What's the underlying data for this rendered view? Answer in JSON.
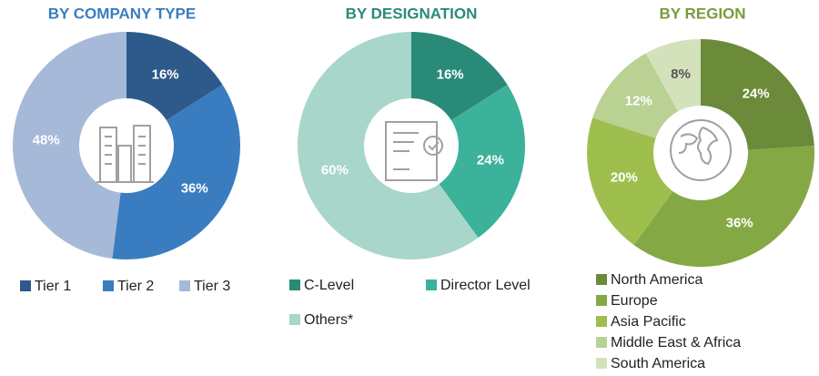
{
  "chart_data": [
    {
      "type": "pie",
      "title": "BY COMPANY TYPE",
      "categories": [
        "Tier 1",
        "Tier 2",
        "Tier 3"
      ],
      "values": [
        16,
        36,
        48
      ],
      "value_labels": [
        "16%",
        "36%",
        "48%"
      ],
      "colors": [
        "#2d5a8a",
        "#3a7cc0",
        "#a7b9d9"
      ]
    },
    {
      "type": "pie",
      "title": "BY DESIGNATION",
      "categories": [
        "C-Level",
        "Director Level",
        "Others*"
      ],
      "values": [
        16,
        24,
        60
      ],
      "value_labels": [
        "16%",
        "24%",
        "60%"
      ],
      "colors": [
        "#2a8a78",
        "#3cb29b",
        "#a9d6ca"
      ]
    },
    {
      "type": "pie",
      "title": "BY REGION",
      "categories": [
        "North America",
        "Europe",
        "Asia Pacific",
        "Middle East & Africa",
        "South America"
      ],
      "values": [
        24,
        36,
        20,
        12,
        8
      ],
      "value_labels": [
        "24%",
        "36%",
        "20%",
        "12%",
        "8%"
      ],
      "colors": [
        "#6b8a3a",
        "#84a844",
        "#9ebf4e",
        "#b9d192",
        "#d4e2bc"
      ]
    }
  ]
}
